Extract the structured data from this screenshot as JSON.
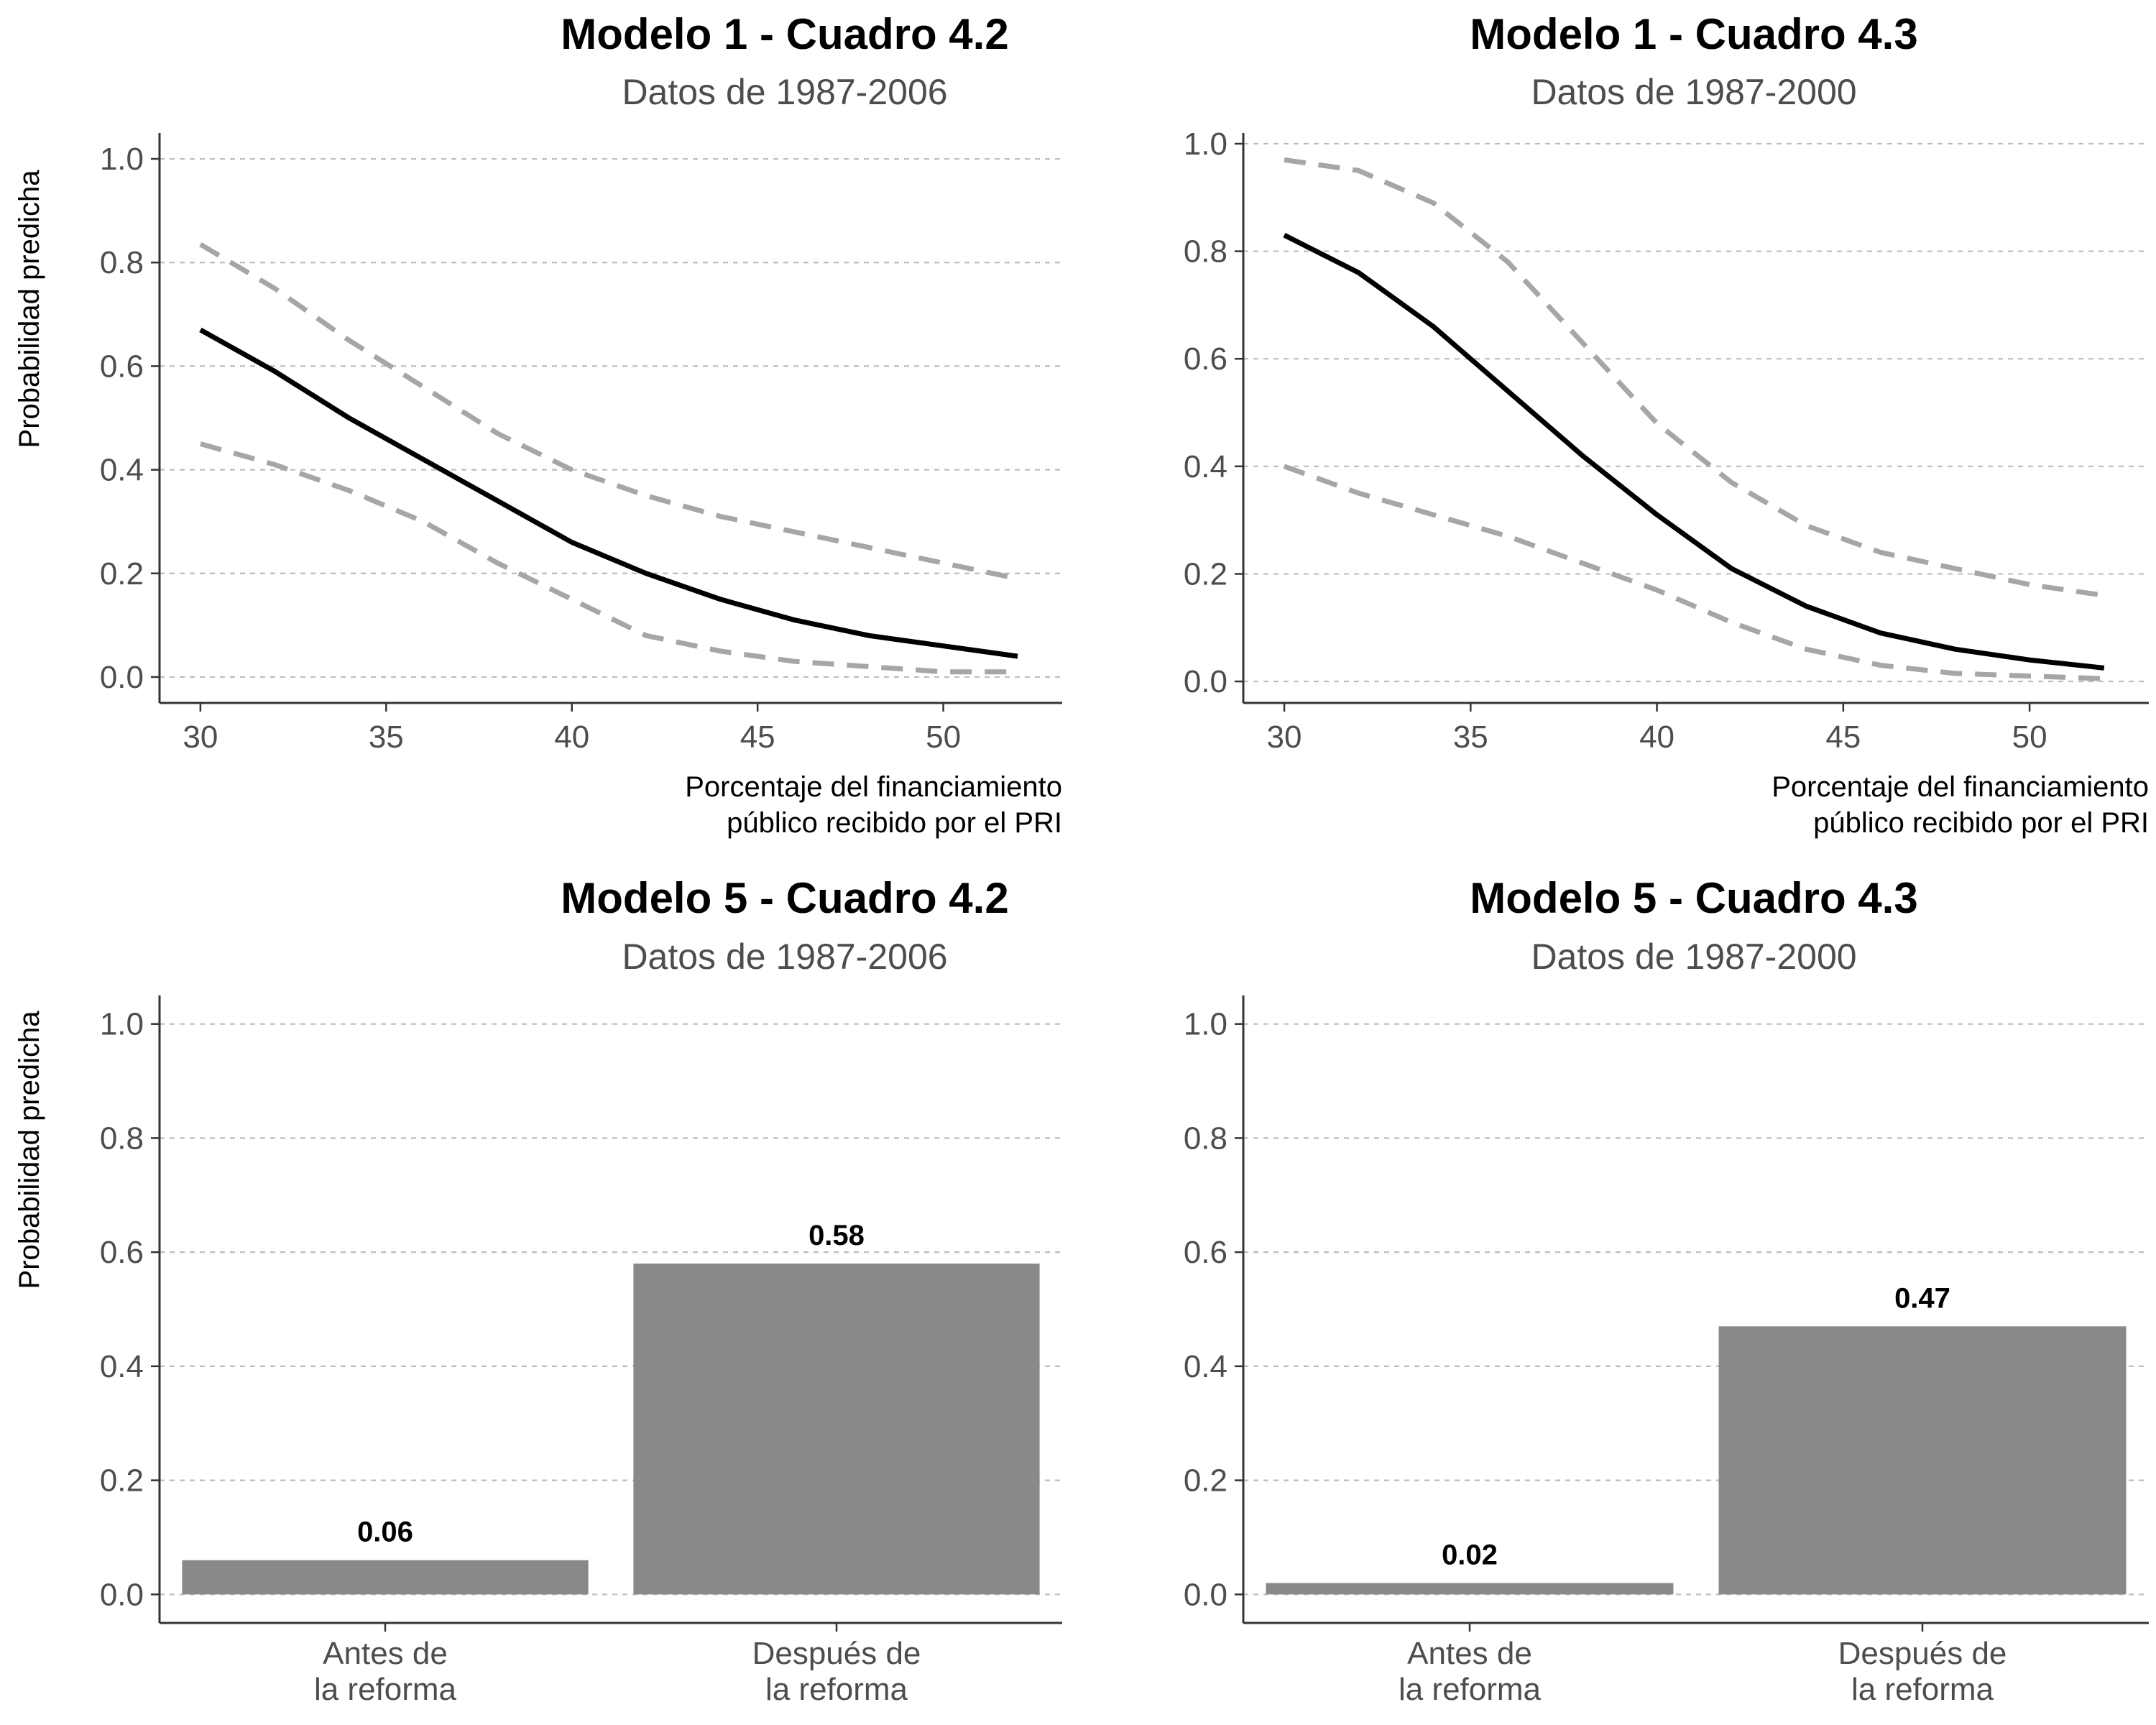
{
  "colors": {
    "estimate_line": "#000000",
    "ci_line": "#a6a6a6",
    "bar_fill": "#898989",
    "grid": "#bdbdbd",
    "axis": "#333333"
  },
  "chart_data": [
    {
      "type": "line",
      "title": "Modelo 1 - Cuadro 4.2",
      "subtitle": "Datos de 1987-2006",
      "ylabel": "Probabilidad predicha",
      "xlabel_lines": [
        "Porcentaje del financiamiento",
        "público recibido por el PRI"
      ],
      "xlim": [
        28.9,
        53.2
      ],
      "ylim": [
        -0.05,
        1.05
      ],
      "xticks": [
        30,
        35,
        40,
        45,
        50
      ],
      "yticks": [
        0.0,
        0.2,
        0.4,
        0.6,
        0.8,
        1.0
      ],
      "ytick_labels": [
        "0.0",
        "0.2",
        "0.4",
        "0.6",
        "0.8",
        "1.0"
      ],
      "grid": "horizontal dashed",
      "x": [
        30,
        32,
        34,
        36,
        38,
        40,
        42,
        44,
        46,
        48,
        50,
        52
      ],
      "series": [
        {
          "role": "estimate",
          "style": "solid",
          "values": [
            0.67,
            0.59,
            0.5,
            0.42,
            0.34,
            0.26,
            0.2,
            0.15,
            0.11,
            0.08,
            0.06,
            0.04
          ]
        },
        {
          "role": "upper",
          "style": "dashed",
          "values": [
            0.835,
            0.75,
            0.65,
            0.56,
            0.47,
            0.4,
            0.35,
            0.31,
            0.28,
            0.25,
            0.22,
            0.19
          ]
        },
        {
          "role": "lower",
          "style": "dashed",
          "values": [
            0.45,
            0.41,
            0.36,
            0.3,
            0.22,
            0.15,
            0.08,
            0.05,
            0.03,
            0.02,
            0.01,
            0.01
          ]
        }
      ]
    },
    {
      "type": "line",
      "title": "Modelo 1 - Cuadro 4.3",
      "subtitle": "Datos de 1987-2000",
      "ylabel": "",
      "xlabel_lines": [
        "Porcentaje del financiamiento",
        "público recibido por el PRI"
      ],
      "xlim": [
        28.9,
        53.2
      ],
      "ylim": [
        -0.04,
        1.02
      ],
      "xticks": [
        30,
        35,
        40,
        45,
        50
      ],
      "yticks": [
        0.0,
        0.2,
        0.4,
        0.6,
        0.8,
        1.0
      ],
      "ytick_labels": [
        "0.0",
        "0.2",
        "0.4",
        "0.6",
        "0.8",
        "1.0"
      ],
      "grid": "horizontal dashed",
      "x": [
        30,
        32,
        34,
        36,
        38,
        40,
        42,
        44,
        46,
        48,
        50,
        52
      ],
      "series": [
        {
          "role": "estimate",
          "style": "solid",
          "values": [
            0.83,
            0.76,
            0.66,
            0.54,
            0.42,
            0.31,
            0.21,
            0.14,
            0.09,
            0.06,
            0.04,
            0.025
          ]
        },
        {
          "role": "upper",
          "style": "dashed",
          "values": [
            0.97,
            0.95,
            0.89,
            0.78,
            0.63,
            0.48,
            0.37,
            0.29,
            0.24,
            0.21,
            0.18,
            0.16
          ]
        },
        {
          "role": "lower",
          "style": "dashed",
          "values": [
            0.4,
            0.35,
            0.31,
            0.27,
            0.22,
            0.17,
            0.11,
            0.06,
            0.03,
            0.015,
            0.01,
            0.005
          ]
        }
      ]
    },
    {
      "type": "bar",
      "title": "Modelo 5 - Cuadro 4.2",
      "subtitle": "Datos de 1987-2006",
      "ylabel": "Probabilidad predicha",
      "categories": [
        [
          "Antes de",
          "la reforma"
        ],
        [
          "Después de",
          "la reforma"
        ]
      ],
      "values": [
        0.06,
        0.58
      ],
      "data_labels": [
        "0.06",
        "0.58"
      ],
      "ylim": [
        -0.05,
        1.05
      ],
      "yticks": [
        0.0,
        0.2,
        0.4,
        0.6,
        0.8,
        1.0
      ],
      "ytick_labels": [
        "0.0",
        "0.2",
        "0.4",
        "0.6",
        "0.8",
        "1.0"
      ],
      "grid": "horizontal dashed"
    },
    {
      "type": "bar",
      "title": "Modelo 5 - Cuadro 4.3",
      "subtitle": "Datos de 1987-2000",
      "ylabel": "",
      "categories": [
        [
          "Antes de",
          "la reforma"
        ],
        [
          "Después de",
          "la reforma"
        ]
      ],
      "values": [
        0.02,
        0.47
      ],
      "data_labels": [
        "0.02",
        "0.47"
      ],
      "ylim": [
        -0.05,
        1.05
      ],
      "yticks": [
        0.0,
        0.2,
        0.4,
        0.6,
        0.8,
        1.0
      ],
      "ytick_labels": [
        "0.0",
        "0.2",
        "0.4",
        "0.6",
        "0.8",
        "1.0"
      ],
      "grid": "horizontal dashed"
    }
  ]
}
